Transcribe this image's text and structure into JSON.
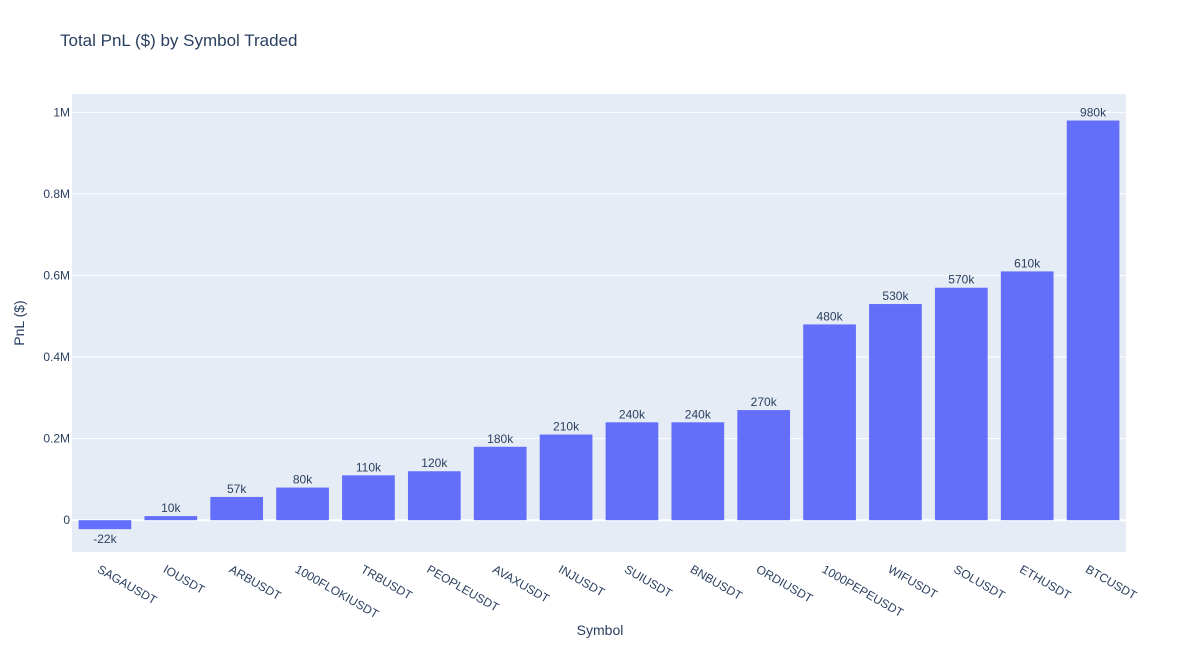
{
  "chart_data": {
    "type": "bar",
    "title": "Total PnL ($) by Symbol Traded",
    "xlabel": "Symbol",
    "ylabel": "PnL ($)",
    "categories": [
      "SAGAUSDT",
      "IOUSDT",
      "ARBUSDT",
      "1000FLOKIUSDT",
      "TRBUSDT",
      "PEOPLEUSDT",
      "AVAXUSDT",
      "INJUSDT",
      "SUIUSDT",
      "BNBUSDT",
      "ORDIUSDT",
      "1000PEPEUSDT",
      "WIFUSDT",
      "SOLUSDT",
      "ETHUSDT",
      "BTCUSDT"
    ],
    "values": [
      -22000,
      10000,
      57000,
      80000,
      110000,
      120000,
      180000,
      210000,
      240000,
      240000,
      270000,
      480000,
      530000,
      570000,
      610000,
      980000
    ],
    "data_labels": [
      "-22k",
      "10k",
      "57k",
      "80k",
      "110k",
      "120k",
      "180k",
      "210k",
      "240k",
      "240k",
      "270k",
      "480k",
      "530k",
      "570k",
      "610k",
      "980k"
    ],
    "ylim": [
      -78000,
      1045000
    ],
    "yticks": [
      0,
      200000,
      400000,
      600000,
      800000,
      1000000
    ],
    "ytick_labels": [
      "0",
      "0.2M",
      "0.4M",
      "0.6M",
      "0.8M",
      "1M"
    ],
    "grid": true,
    "colors": {
      "bar": "#636efa",
      "plot_bg": "#e5ecf6",
      "grid": "#ffffff",
      "text": "#2a3f5f"
    }
  }
}
